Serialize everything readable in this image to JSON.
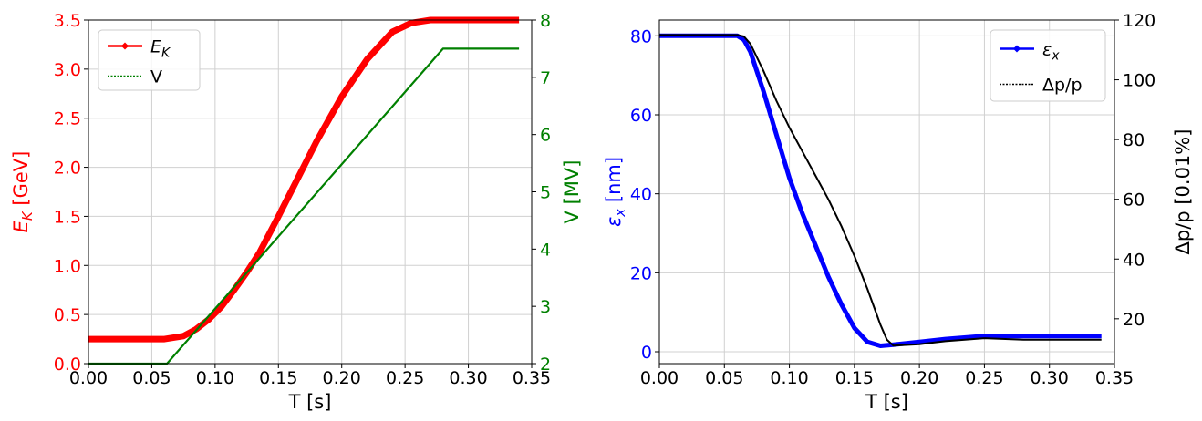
{
  "chart_data": [
    {
      "type": "line",
      "x_ticks": [
        "0.00",
        "0.05",
        "0.10",
        "0.15",
        "0.20",
        "0.25",
        "0.30",
        "0.35"
      ],
      "y_ticks": [
        "0.0",
        "0.5",
        "1.0",
        "1.5",
        "2.0",
        "2.5",
        "3.0",
        "3.5"
      ],
      "y2_ticks": [
        "2",
        "3",
        "4",
        "5",
        "6",
        "7",
        "8"
      ],
      "xlabel": "T [s]",
      "ylabel": "E_K [GeV]",
      "ylabel_main": "E",
      "ylabel_sub": "K",
      "ylabel_rest": " [GeV]",
      "y2label": "V [MV]",
      "xlim": [
        0,
        0.35
      ],
      "ylim": [
        0,
        3.5
      ],
      "y2lim": [
        2,
        8
      ],
      "grid": true,
      "legend_position": "top-left",
      "colors": {
        "left_axis": "#ff0000",
        "right_axis": "#008000"
      },
      "series": [
        {
          "name": "E_K",
          "legend_main": "E",
          "legend_sub": "K",
          "axis": "left",
          "color": "#ff0000",
          "x": [
            0,
            0.04,
            0.06,
            0.075,
            0.085,
            0.095,
            0.105,
            0.115,
            0.125,
            0.135,
            0.15,
            0.165,
            0.18,
            0.2,
            0.22,
            0.24,
            0.255,
            0.265,
            0.27,
            0.28,
            0.3,
            0.34
          ],
          "y": [
            0.25,
            0.25,
            0.25,
            0.28,
            0.35,
            0.45,
            0.58,
            0.75,
            0.93,
            1.13,
            1.5,
            1.88,
            2.26,
            2.72,
            3.1,
            3.38,
            3.47,
            3.49,
            3.5,
            3.5,
            3.5,
            3.5
          ]
        },
        {
          "name": "V",
          "axis": "right",
          "color": "#008000",
          "x": [
            0,
            0.062,
            0.28,
            0.34
          ],
          "y": [
            2,
            2,
            7.5,
            7.5
          ]
        }
      ]
    },
    {
      "type": "line",
      "x_ticks": [
        "0.00",
        "0.05",
        "0.10",
        "0.15",
        "0.20",
        "0.25",
        "0.30",
        "0.35"
      ],
      "y_ticks": [
        "0",
        "20",
        "40",
        "60",
        "80"
      ],
      "y2_ticks": [
        "20",
        "40",
        "60",
        "80",
        "100",
        "120"
      ],
      "xlabel": "T [s]",
      "ylabel": "ε_x [nm]",
      "ylabel_main": "ε",
      "ylabel_sub": "x",
      "ylabel_rest": " [nm]",
      "y2label": "Δp/p [0.01%]",
      "xlim": [
        0,
        0.35
      ],
      "ylim": [
        -3,
        84
      ],
      "y2lim": [
        5,
        120
      ],
      "grid": true,
      "legend_position": "top-right",
      "colors": {
        "left_axis": "#0000ff",
        "right_axis": "#000000"
      },
      "series": [
        {
          "name": "ε_x",
          "legend_main": "ε",
          "legend_sub": "x",
          "axis": "left",
          "color": "#0000ff",
          "x": [
            0,
            0.06,
            0.065,
            0.07,
            0.08,
            0.09,
            0.1,
            0.11,
            0.12,
            0.13,
            0.14,
            0.15,
            0.16,
            0.17,
            0.18,
            0.2,
            0.22,
            0.25,
            0.28,
            0.34
          ],
          "y": [
            80,
            80,
            79,
            76,
            66,
            55,
            44,
            35,
            27,
            19,
            12,
            6,
            2.5,
            1.5,
            1.8,
            2.5,
            3.2,
            4,
            4,
            4
          ]
        },
        {
          "name": "Δp/p",
          "legend_main": "Δp/p",
          "axis": "right",
          "color": "#000000",
          "x": [
            0,
            0.06,
            0.065,
            0.07,
            0.08,
            0.09,
            0.1,
            0.11,
            0.12,
            0.13,
            0.14,
            0.15,
            0.16,
            0.17,
            0.175,
            0.18,
            0.2,
            0.22,
            0.25,
            0.28,
            0.34
          ],
          "y": [
            115,
            115,
            114.5,
            112,
            103,
            93,
            84,
            76,
            68,
            60,
            51,
            41,
            30,
            18,
            13,
            11,
            11.5,
            12.5,
            13.5,
            13,
            13
          ]
        }
      ]
    }
  ]
}
